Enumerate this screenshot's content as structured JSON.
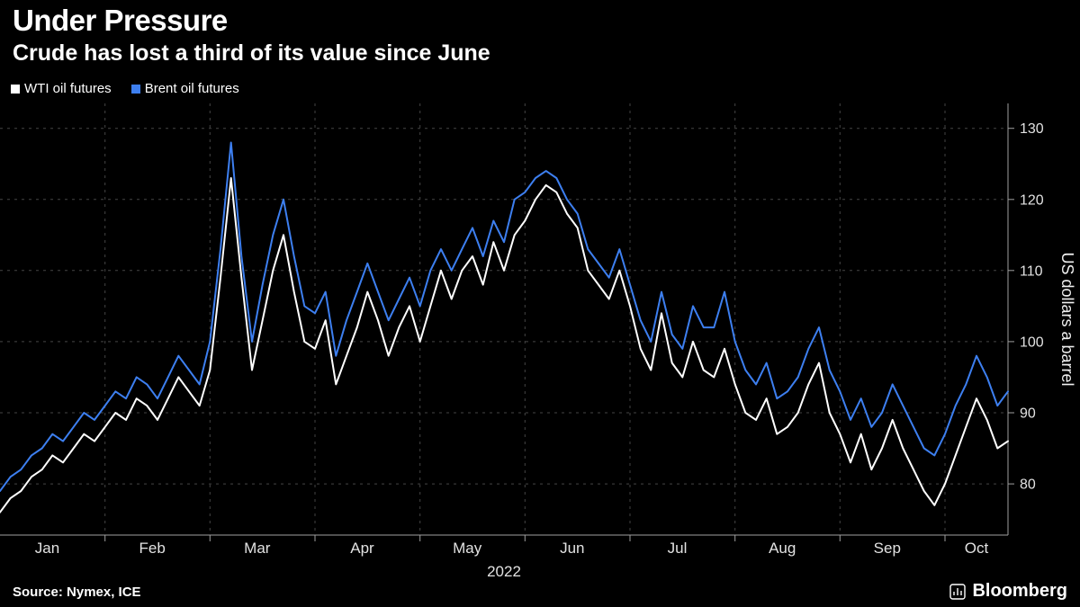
{
  "header": {
    "title": "Under Pressure",
    "subtitle": "Crude has lost a third of its value since June"
  },
  "legend": [
    {
      "label": "WTI oil futures",
      "color": "#ffffff"
    },
    {
      "label": "Brent oil futures",
      "color": "#3d7ff0"
    }
  ],
  "footer": {
    "source": "Source: Nymex, ICE",
    "brand": "Bloomberg"
  },
  "chart_data": {
    "type": "line",
    "title": "Under Pressure",
    "subtitle": "Crude has lost a third of its value since June",
    "ylabel": "US dollars a barrel",
    "xlabel": "2022",
    "months": [
      "Jan",
      "Feb",
      "Mar",
      "Apr",
      "May",
      "Jun",
      "Jul",
      "Aug",
      "Sep",
      "Oct"
    ],
    "points_per_month": [
      10,
      10,
      10,
      10,
      10,
      10,
      10,
      10,
      10,
      7
    ],
    "ylim": [
      72.8,
      133.5
    ],
    "yticks": [
      80,
      90,
      100,
      110,
      120,
      130
    ],
    "grid": true,
    "legend_position": "top-left",
    "colors": {
      "background": "#000000",
      "gridline": "#454545",
      "axis": "#a0a0a0",
      "wti": "#ffffff",
      "brent": "#3d7ff0"
    },
    "series": [
      {
        "name": "WTI oil futures",
        "color": "#ffffff",
        "values": [
          76,
          78,
          79,
          81,
          82,
          84,
          83,
          85,
          87,
          86,
          88,
          90,
          89,
          92,
          91,
          89,
          92,
          95,
          93,
          91,
          96,
          109,
          123,
          109,
          96,
          103,
          110,
          115,
          107,
          100,
          99,
          103,
          94,
          98,
          102,
          107,
          103,
          98,
          102,
          105,
          100,
          105,
          110,
          106,
          110,
          112,
          108,
          114,
          110,
          115,
          117,
          120,
          122,
          121,
          118,
          116,
          110,
          108,
          106,
          110,
          105,
          99,
          96,
          104,
          97,
          95,
          100,
          96,
          95,
          99,
          94,
          90,
          89,
          92,
          87,
          88,
          90,
          94,
          97,
          90,
          87,
          83,
          87,
          82,
          85,
          89,
          85,
          82,
          79,
          77,
          80,
          84,
          88,
          92,
          89,
          85,
          86
        ]
      },
      {
        "name": "Brent oil futures",
        "color": "#3d7ff0",
        "values": [
          79,
          81,
          82,
          84,
          85,
          87,
          86,
          88,
          90,
          89,
          91,
          93,
          92,
          95,
          94,
          92,
          95,
          98,
          96,
          94,
          100,
          113,
          128,
          112,
          100,
          108,
          115,
          120,
          112,
          105,
          104,
          107,
          98,
          103,
          107,
          111,
          107,
          103,
          106,
          109,
          105,
          110,
          113,
          110,
          113,
          116,
          112,
          117,
          114,
          120,
          121,
          123,
          124,
          123,
          120,
          118,
          113,
          111,
          109,
          113,
          108,
          103,
          100,
          107,
          101,
          99,
          105,
          102,
          102,
          107,
          100,
          96,
          94,
          97,
          92,
          93,
          95,
          99,
          102,
          96,
          93,
          89,
          92,
          88,
          90,
          94,
          91,
          88,
          85,
          84,
          87,
          91,
          94,
          98,
          95,
          91,
          93
        ]
      }
    ]
  }
}
